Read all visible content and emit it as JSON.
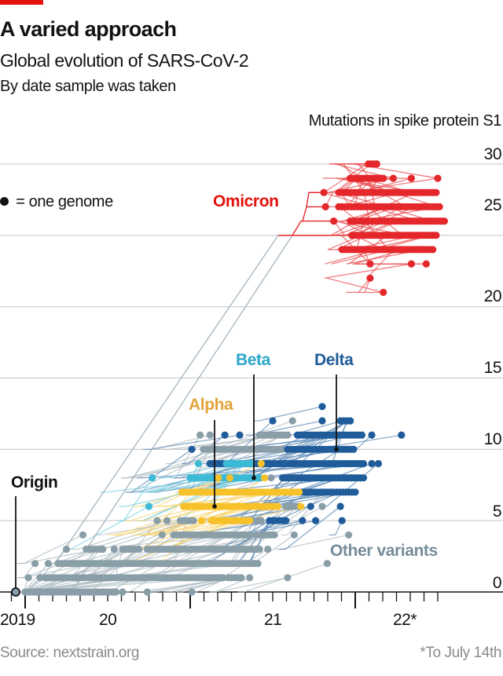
{
  "header": {
    "title": "A varied approach",
    "subtitle": "Global evolution of SARS-CoV-2",
    "subsubtitle": "By date sample was taken"
  },
  "footer": {
    "source": "Source: nextstrain.org",
    "footnote": "*To July 14th"
  },
  "colors": {
    "brand_red": "#e3120b",
    "grid": "#d0d0d0",
    "other": "#8a9ea8",
    "alpha": "#f7c12a",
    "beta": "#3bbad6",
    "delta": "#1f5c99",
    "omicron": "#e4272b"
  },
  "chart_data": {
    "type": "scatter",
    "title": "A varied approach",
    "subtitle": "Global evolution of SARS-CoV-2",
    "xlabel": "By date sample was taken",
    "ylabel": "Mutations in spike protein S1",
    "ylim": [
      0,
      30
    ],
    "xlim": [
      2019.9,
      2022.6
    ],
    "y_tick_values": [
      0,
      5,
      10,
      15,
      20,
      25,
      30
    ],
    "y_tick_labels": [
      "0",
      "5",
      "10",
      "15",
      "20",
      "25",
      "30"
    ],
    "x_tick_labels": [
      "2019",
      "20",
      "21",
      "22*"
    ],
    "grid": true,
    "legend": "● = one genome",
    "legend_position": "left",
    "annotations": {
      "origin": "Origin",
      "alpha": "Alpha",
      "beta": "Beta",
      "delta": "Delta",
      "omicron": "Omicron",
      "other": "Other variants"
    },
    "segment_format": [
      "mutations",
      "from_year",
      "to_year"
    ],
    "series": [
      {
        "name": "Other variants",
        "color": "#8a9ea8",
        "segments": [
          [
            0,
            2020.0,
            2020.55
          ],
          [
            0,
            2020.59,
            2020.59
          ],
          [
            0,
            2020.74,
            2020.74
          ],
          [
            0,
            2021.01,
            2021.01
          ],
          [
            1,
            2020.02,
            2020.02
          ],
          [
            1,
            2020.09,
            2020.09
          ],
          [
            1,
            2020.12,
            2021.2
          ],
          [
            1,
            2021.23,
            2021.31
          ],
          [
            1,
            2021.36,
            2021.36
          ],
          [
            1,
            2021.59,
            2021.59
          ],
          [
            2,
            2020.06,
            2020.06
          ],
          [
            2,
            2020.14,
            2020.14
          ],
          [
            2,
            2020.2,
            2021.41
          ],
          [
            2,
            2021.83,
            2021.83
          ],
          [
            3,
            2020.25,
            2020.25
          ],
          [
            3,
            2020.37,
            2020.47
          ],
          [
            3,
            2020.54,
            2020.54
          ],
          [
            3,
            2020.59,
            2020.69
          ],
          [
            3,
            2020.74,
            2021.42
          ],
          [
            3,
            2021.47,
            2021.47
          ],
          [
            4,
            2020.35,
            2020.35
          ],
          [
            4,
            2020.83,
            2020.83
          ],
          [
            4,
            2020.9,
            2021.36
          ],
          [
            4,
            2021.4,
            2021.51
          ],
          [
            4,
            2021.63,
            2021.63
          ],
          [
            4,
            2021.96,
            2021.96
          ],
          [
            5,
            2020.8,
            2020.8
          ],
          [
            5,
            2020.86,
            2020.86
          ],
          [
            5,
            2020.94,
            2021.02
          ],
          [
            5,
            2021.37,
            2021.43
          ],
          [
            6,
            2021.58,
            2021.66
          ],
          [
            6,
            2021.8,
            2021.8
          ],
          [
            7,
            2021.8,
            2021.8
          ],
          [
            7,
            2021.85,
            2021.85
          ],
          [
            8,
            2021.49,
            2021.49
          ],
          [
            8,
            2021.57,
            2021.57
          ],
          [
            10,
            2021.08,
            2021.56
          ],
          [
            11,
            2021.06,
            2021.06
          ],
          [
            11,
            2021.12,
            2021.12
          ],
          [
            11,
            2021.42,
            2021.59
          ],
          [
            11,
            2021.79,
            2021.79
          ],
          [
            12,
            2021.62,
            2021.62
          ]
        ]
      },
      {
        "name": "Delta",
        "color": "#1f5c99",
        "segments": [
          [
            5,
            2021.48,
            2021.58
          ],
          [
            5,
            2021.68,
            2021.68
          ],
          [
            5,
            2021.76,
            2021.76
          ],
          [
            5,
            2021.92,
            2021.92
          ],
          [
            6,
            2021.73,
            2021.73
          ],
          [
            6,
            2021.91,
            2021.91
          ],
          [
            7,
            2021.66,
            2022.0
          ],
          [
            8,
            2021.56,
            2022.05
          ],
          [
            9,
            2021.12,
            2022.05
          ],
          [
            9,
            2022.1,
            2022.1
          ],
          [
            9,
            2022.14,
            2022.14
          ],
          [
            10,
            2021.01,
            2021.01
          ],
          [
            10,
            2021.59,
            2021.99
          ],
          [
            11,
            2021.21,
            2021.21
          ],
          [
            11,
            2021.3,
            2021.3
          ],
          [
            11,
            2021.65,
            2022.04
          ],
          [
            11,
            2022.1,
            2022.1
          ],
          [
            11,
            2022.28,
            2022.28
          ],
          [
            12,
            2021.5,
            2021.5
          ],
          [
            12,
            2021.8,
            2021.8
          ],
          [
            12,
            2021.91,
            2021.97
          ],
          [
            13,
            2021.8,
            2021.8
          ]
        ]
      },
      {
        "name": "Beta",
        "color": "#3bbad6",
        "segments": [
          [
            6,
            2020.75,
            2020.75
          ],
          [
            8,
            2020.77,
            2020.77
          ],
          [
            8,
            2021.0,
            2021.42
          ],
          [
            9,
            2021.05,
            2021.05
          ],
          [
            9,
            2021.22,
            2021.37
          ]
        ]
      },
      {
        "name": "Alpha",
        "color": "#f7c12a",
        "segments": [
          [
            5,
            2021.07,
            2021.07
          ],
          [
            5,
            2021.13,
            2021.36
          ],
          [
            6,
            2020.96,
            2021.53
          ],
          [
            6,
            2021.67,
            2021.67
          ],
          [
            7,
            2020.95,
            2021.66
          ],
          [
            8,
            2021.17,
            2021.17
          ],
          [
            8,
            2021.24,
            2021.24
          ],
          [
            8,
            2021.45,
            2021.45
          ],
          [
            9,
            2021.43,
            2021.43
          ]
        ]
      },
      {
        "name": "Omicron",
        "color": "#e4272b",
        "segments": [
          [
            30,
            2022.08,
            2022.13
          ],
          [
            29,
            2021.97,
            2022.17
          ],
          [
            29,
            2022.23,
            2022.23
          ],
          [
            29,
            2022.34,
            2022.34
          ],
          [
            29,
            2022.5,
            2022.5
          ],
          [
            28,
            2021.81,
            2021.81
          ],
          [
            28,
            2021.9,
            2022.49
          ],
          [
            27,
            2021.82,
            2021.82
          ],
          [
            27,
            2021.9,
            2022.51
          ],
          [
            26,
            2021.87,
            2021.87
          ],
          [
            26,
            2021.97,
            2022.54
          ],
          [
            25,
            2021.98,
            2022.49
          ],
          [
            24,
            2021.92,
            2022.47
          ],
          [
            23,
            2022.09,
            2022.09
          ],
          [
            23,
            2022.34,
            2022.34
          ],
          [
            23,
            2022.43,
            2022.43
          ],
          [
            22,
            2022.09,
            2022.09
          ],
          [
            21,
            2022.17,
            2022.17
          ]
        ]
      }
    ]
  }
}
